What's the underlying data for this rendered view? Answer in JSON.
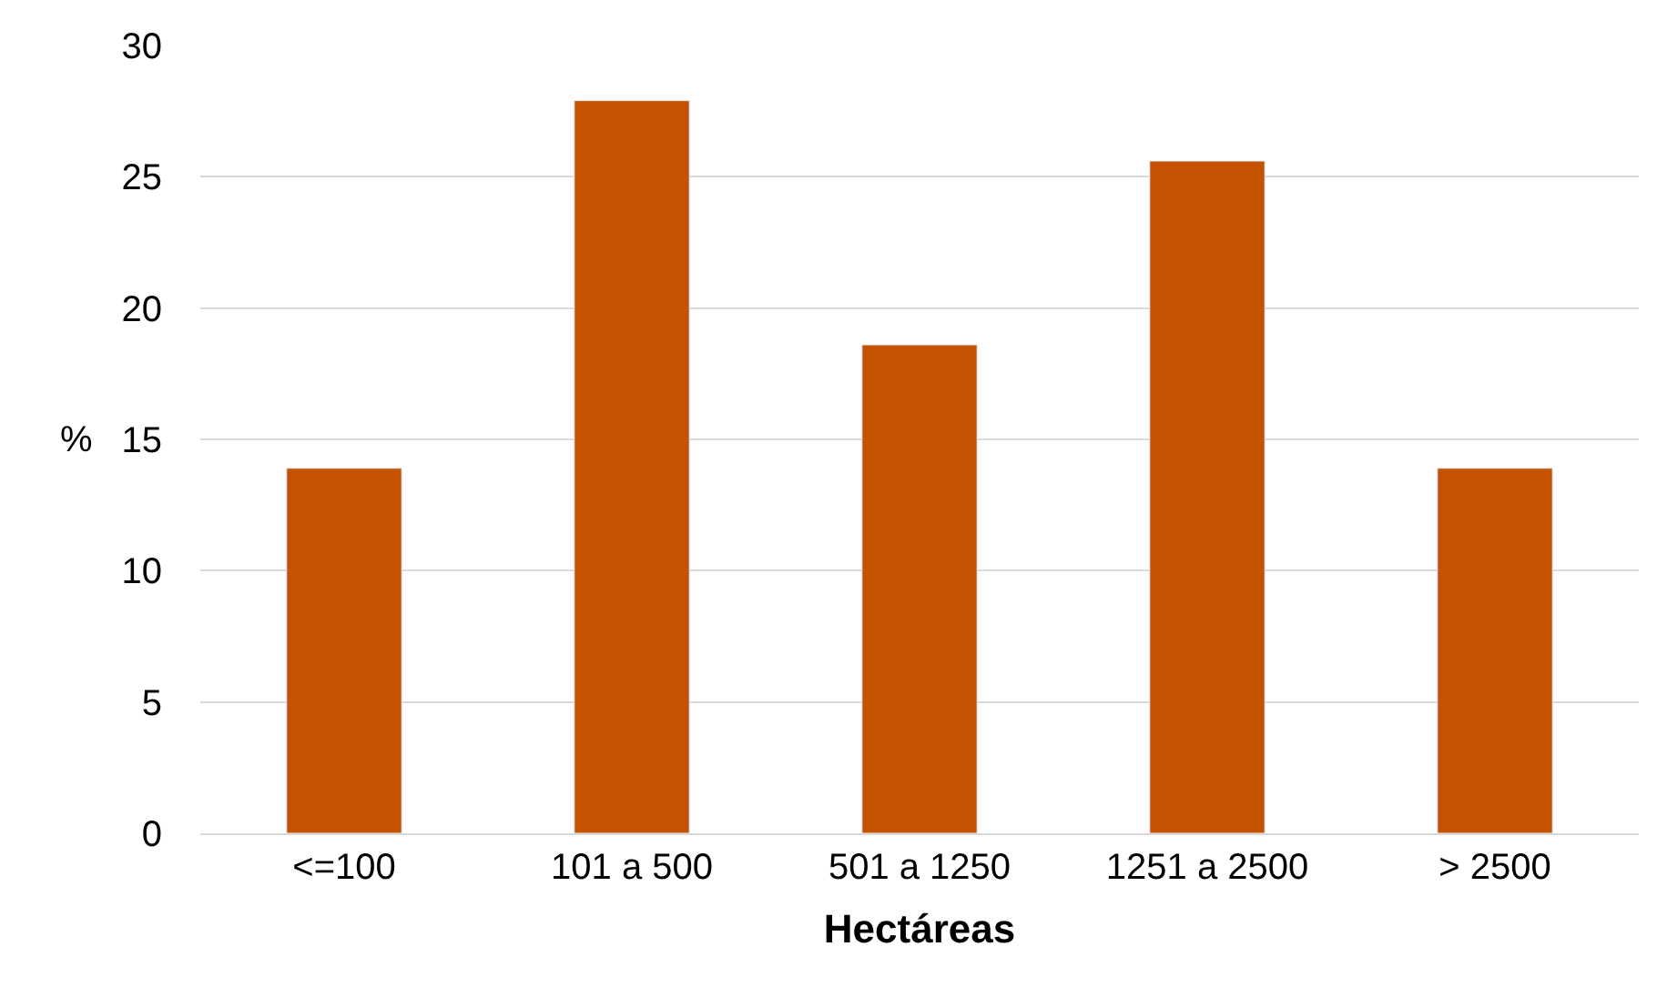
{
  "chart_data": {
    "type": "bar",
    "xlabel": "Hectáreas",
    "ylabel": "%",
    "categories": [
      "<=100",
      "101 a 500",
      "501 a 1250",
      "1251 a 2500",
      "> 2500"
    ],
    "values": [
      13.9,
      27.9,
      18.6,
      25.6,
      13.9
    ],
    "color": "#c55200",
    "ylim": [
      0,
      30
    ],
    "yticks": [
      0,
      5,
      10,
      15,
      20,
      25,
      30
    ],
    "grid": "y"
  }
}
